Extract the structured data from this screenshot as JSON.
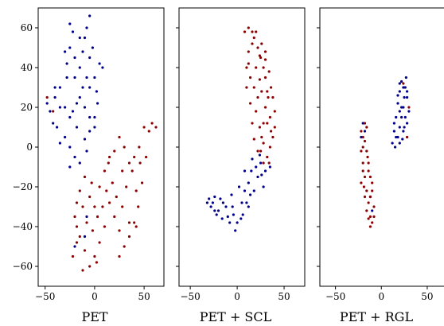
{
  "colors": {
    "class_a": "#00008b",
    "class_b": "#8b0000"
  },
  "chart_data": [
    {
      "type": "scatter",
      "xlabel": "PET",
      "xlim": [
        -57,
        70
      ],
      "ylim": [
        -70,
        70
      ],
      "xticks": [
        -50,
        0,
        50
      ],
      "xtick_labels": [
        "−50",
        "0",
        "50"
      ],
      "yticks": [
        -60,
        -40,
        -20,
        0,
        20,
        40,
        60
      ],
      "ytick_labels": [
        "−60",
        "−40",
        "−20",
        "0",
        "20",
        "40",
        "60"
      ],
      "series": [
        {
          "color": "#00008b",
          "points": [
            [
              -25,
              62
            ],
            [
              -22,
              58
            ],
            [
              -25,
              50
            ],
            [
              -5,
              66
            ],
            [
              -8,
              60
            ],
            [
              -10,
              55
            ],
            [
              -5,
              45
            ],
            [
              5,
              42
            ],
            [
              8,
              40
            ],
            [
              0,
              35
            ],
            [
              -5,
              30
            ],
            [
              -15,
              40
            ],
            [
              -20,
              35
            ],
            [
              -28,
              42
            ],
            [
              -35,
              30
            ],
            [
              -40,
              25
            ],
            [
              -45,
              18
            ],
            [
              -38,
              10
            ],
            [
              -30,
              5
            ],
            [
              -25,
              0
            ],
            [
              -20,
              -5
            ],
            [
              -15,
              -8
            ],
            [
              -25,
              -10
            ],
            [
              -18,
              10
            ],
            [
              -22,
              18
            ],
            [
              -15,
              25
            ],
            [
              -10,
              20
            ],
            [
              -5,
              15
            ],
            [
              0,
              10
            ],
            [
              2,
              28
            ],
            [
              -8,
              35
            ],
            [
              -12,
              48
            ],
            [
              -30,
              20
            ],
            [
              -42,
              12
            ],
            [
              -48,
              22
            ],
            [
              -35,
              2
            ],
            [
              0,
              15
            ],
            [
              3,
              22
            ],
            [
              -5,
              8
            ],
            [
              -10,
              4
            ],
            [
              -28,
              35
            ],
            [
              -20,
              45
            ],
            [
              -30,
              48
            ],
            [
              -15,
              55
            ],
            [
              -2,
              50
            ],
            [
              -12,
              30
            ],
            [
              -18,
              22
            ],
            [
              -8,
              -2
            ],
            [
              -25,
              15
            ],
            [
              -35,
              20
            ],
            [
              -40,
              30
            ],
            [
              -20,
              -50
            ],
            [
              -10,
              -45
            ],
            [
              -8,
              -35
            ]
          ]
        },
        {
          "color": "#8b0000",
          "points": [
            [
              -48,
              25
            ],
            [
              -42,
              18
            ],
            [
              -15,
              -22
            ],
            [
              -10,
              -15
            ],
            [
              -5,
              -25
            ],
            [
              0,
              -30
            ],
            [
              5,
              -20
            ],
            [
              10,
              -12
            ],
            [
              15,
              -5
            ],
            [
              20,
              -2
            ],
            [
              25,
              5
            ],
            [
              30,
              0
            ],
            [
              35,
              -8
            ],
            [
              40,
              -5
            ],
            [
              45,
              0
            ],
            [
              50,
              10
            ],
            [
              55,
              8
            ],
            [
              52,
              -5
            ],
            [
              48,
              -18
            ],
            [
              44,
              -30
            ],
            [
              40,
              -38
            ],
            [
              35,
              -45
            ],
            [
              30,
              -50
            ],
            [
              25,
              -42
            ],
            [
              20,
              -35
            ],
            [
              15,
              -28
            ],
            [
              10,
              -40
            ],
            [
              5,
              -48
            ],
            [
              0,
              -55
            ],
            [
              -5,
              -60
            ],
            [
              -10,
              -52
            ],
            [
              -15,
              -45
            ],
            [
              -18,
              -40
            ],
            [
              -20,
              -35
            ],
            [
              -18,
              -28
            ],
            [
              -12,
              -30
            ],
            [
              -8,
              -38
            ],
            [
              -2,
              -42
            ],
            [
              3,
              -35
            ],
            [
              8,
              -30
            ],
            [
              12,
              -22
            ],
            [
              18,
              -18
            ],
            [
              22,
              -25
            ],
            [
              28,
              -30
            ],
            [
              32,
              -20
            ],
            [
              38,
              -12
            ],
            [
              42,
              -22
            ],
            [
              46,
              -8
            ],
            [
              58,
              12
            ],
            [
              62,
              10
            ],
            [
              -22,
              -55
            ],
            [
              -12,
              -62
            ],
            [
              2,
              -58
            ],
            [
              25,
              -55
            ],
            [
              35,
              -38
            ],
            [
              42,
              -40
            ],
            [
              -18,
              -48
            ],
            [
              28,
              -12
            ],
            [
              14,
              -8
            ],
            [
              -3,
              -18
            ]
          ]
        }
      ]
    },
    {
      "type": "scatter",
      "xlabel": "PET + SCL",
      "xlim": [
        -62,
        72
      ],
      "ylim": [
        -70,
        70
      ],
      "xticks": [
        -50,
        0,
        50
      ],
      "xtick_labels": [
        "−50",
        "0",
        "50"
      ],
      "yticks": [
        -60,
        -40,
        -20,
        0,
        20,
        40,
        60
      ],
      "ytick_labels": [
        "",
        "",
        "",
        "",
        "",
        "",
        ""
      ],
      "series": [
        {
          "color": "#00008b",
          "points": [
            [
              -32,
              -28
            ],
            [
              -28,
              -30
            ],
            [
              -24,
              -25
            ],
            [
              -20,
              -32
            ],
            [
              -15,
              -28
            ],
            [
              -10,
              -35
            ],
            [
              -5,
              -30
            ],
            [
              0,
              -38
            ],
            [
              5,
              -28
            ],
            [
              8,
              -22
            ],
            [
              12,
              -18
            ],
            [
              15,
              -12
            ],
            [
              20,
              -10
            ],
            [
              25,
              -8
            ],
            [
              30,
              -12
            ],
            [
              22,
              -15
            ],
            [
              18,
              -22
            ],
            [
              10,
              -28
            ],
            [
              4,
              -36
            ],
            [
              -2,
              -42
            ],
            [
              -8,
              -38
            ],
            [
              -12,
              -30
            ],
            [
              -18,
              -26
            ],
            [
              -22,
              -34
            ],
            [
              -26,
              -28
            ],
            [
              -30,
              -26
            ],
            [
              -6,
              -24
            ],
            [
              2,
              -20
            ],
            [
              14,
              -24
            ],
            [
              26,
              -14
            ],
            [
              35,
              -10
            ],
            [
              -16,
              -36
            ],
            [
              -4,
              -34
            ],
            [
              6,
              -34
            ],
            [
              12,
              -30
            ],
            [
              -24,
              -32
            ],
            [
              28,
              -20
            ],
            [
              8,
              -12
            ],
            [
              16,
              -6
            ],
            [
              24,
              -4
            ]
          ]
        },
        {
          "color": "#8b0000",
          "points": [
            [
              8,
              58
            ],
            [
              12,
              60
            ],
            [
              18,
              55
            ],
            [
              22,
              50
            ],
            [
              25,
              45
            ],
            [
              28,
              40
            ],
            [
              30,
              35
            ],
            [
              32,
              28
            ],
            [
              30,
              20
            ],
            [
              28,
              12
            ],
            [
              26,
              5
            ],
            [
              25,
              -2
            ],
            [
              28,
              -8
            ],
            [
              32,
              -5
            ],
            [
              35,
              0
            ],
            [
              38,
              5
            ],
            [
              40,
              10
            ],
            [
              35,
              15
            ],
            [
              33,
              25
            ],
            [
              36,
              30
            ],
            [
              34,
              38
            ],
            [
              30,
              44
            ],
            [
              26,
              52
            ],
            [
              20,
              58
            ],
            [
              16,
              52
            ],
            [
              12,
              48
            ],
            [
              10,
              40
            ],
            [
              14,
              35
            ],
            [
              18,
              30
            ],
            [
              22,
              25
            ],
            [
              20,
              18
            ],
            [
              16,
              12
            ],
            [
              18,
              4
            ],
            [
              22,
              -2
            ],
            [
              28,
              2
            ],
            [
              24,
              10
            ],
            [
              14,
              22
            ],
            [
              10,
              30
            ],
            [
              12,
              42
            ],
            [
              20,
              40
            ],
            [
              24,
              34
            ],
            [
              26,
              28
            ],
            [
              30,
              48
            ],
            [
              36,
              8
            ],
            [
              40,
              18
            ],
            [
              38,
              25
            ],
            [
              16,
              58
            ],
            [
              24,
              46
            ],
            [
              32,
              12
            ],
            [
              34,
              -8
            ]
          ]
        }
      ]
    },
    {
      "type": "scatter",
      "xlabel": "PET + RGL",
      "xlim": [
        -67,
        70
      ],
      "ylim": [
        -70,
        70
      ],
      "xticks": [
        -50,
        0,
        50
      ],
      "xtick_labels": [
        "−50",
        "0",
        "50"
      ],
      "yticks": [
        -60,
        -40,
        -20,
        0,
        20,
        40,
        60
      ],
      "ytick_labels": [
        "",
        "",
        "",
        "",
        "",
        "",
        ""
      ],
      "series": [
        {
          "color": "#00008b",
          "points": [
            [
              18,
              5
            ],
            [
              20,
              10
            ],
            [
              22,
              15
            ],
            [
              24,
              20
            ],
            [
              25,
              25
            ],
            [
              26,
              30
            ],
            [
              27,
              35
            ],
            [
              22,
              33
            ],
            [
              20,
              28
            ],
            [
              18,
              22
            ],
            [
              16,
              15
            ],
            [
              14,
              8
            ],
            [
              12,
              2
            ],
            [
              15,
              0
            ],
            [
              20,
              2
            ],
            [
              24,
              8
            ],
            [
              28,
              12
            ],
            [
              30,
              18
            ],
            [
              28,
              25
            ],
            [
              24,
              30
            ],
            [
              20,
              32
            ],
            [
              18,
              26
            ],
            [
              22,
              20
            ],
            [
              26,
              15
            ],
            [
              16,
              5
            ],
            [
              14,
              12
            ],
            [
              20,
              18
            ],
            [
              25,
              10
            ],
            [
              28,
              28
            ],
            [
              23,
              4
            ],
            [
              -20,
              12
            ],
            [
              -18,
              8
            ],
            [
              -22,
              5
            ],
            [
              -12,
              -25
            ],
            [
              -10,
              -32
            ]
          ]
        },
        {
          "color": "#8b0000",
          "points": [
            [
              -18,
              12
            ],
            [
              -20,
              5
            ],
            [
              -22,
              -2
            ],
            [
              -20,
              -8
            ],
            [
              -18,
              -15
            ],
            [
              -16,
              -22
            ],
            [
              -14,
              -28
            ],
            [
              -12,
              -35
            ],
            [
              -10,
              -38
            ],
            [
              -8,
              -30
            ],
            [
              -10,
              -22
            ],
            [
              -12,
              -15
            ],
            [
              -14,
              -8
            ],
            [
              -16,
              -2
            ],
            [
              -18,
              3
            ],
            [
              -20,
              -12
            ],
            [
              -22,
              -18
            ],
            [
              -18,
              -25
            ],
            [
              -16,
              -32
            ],
            [
              -14,
              -36
            ],
            [
              -12,
              -40
            ],
            [
              -20,
              0
            ],
            [
              -22,
              8
            ],
            [
              -16,
              10
            ],
            [
              -14,
              -12
            ],
            [
              -10,
              -18
            ],
            [
              -12,
              -25
            ],
            [
              -8,
              -35
            ],
            [
              -15,
              -5
            ],
            [
              -19,
              -20
            ],
            [
              24,
              32
            ],
            [
              28,
              5
            ],
            [
              30,
              20
            ]
          ]
        }
      ]
    }
  ]
}
